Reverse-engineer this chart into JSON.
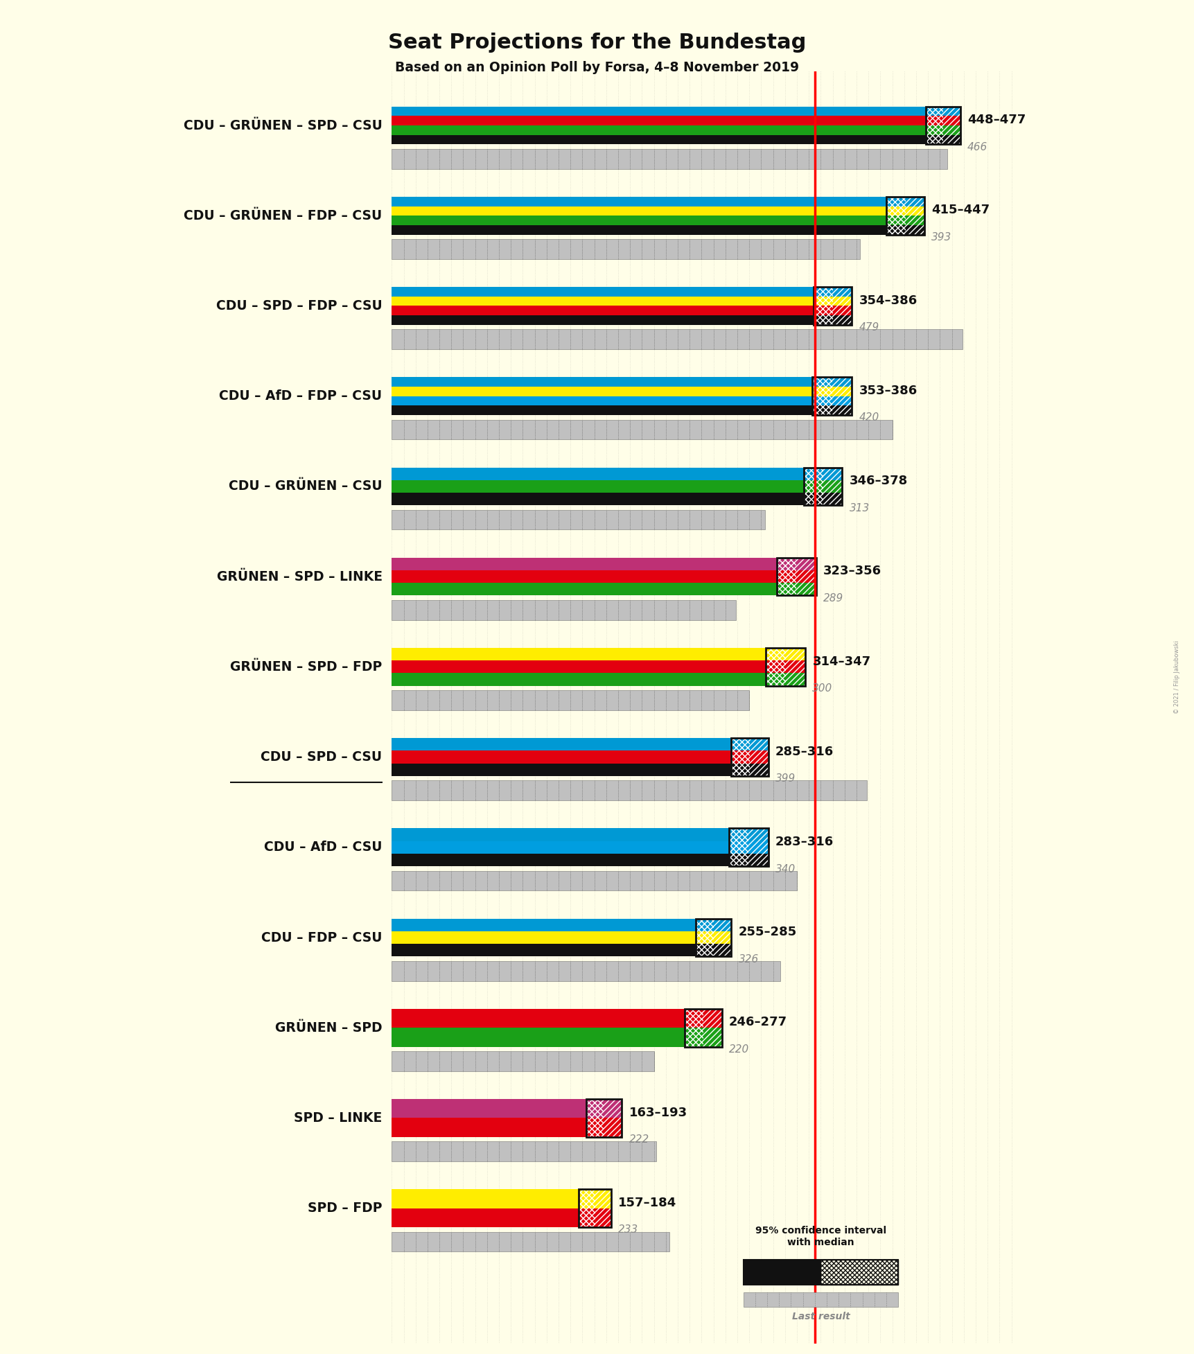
{
  "title": "Seat Projections for the Bundestag",
  "subtitle": "Based on an Opinion Poll by Forsa, 4–8 November 2019",
  "bg": "#FFFEE8",
  "majority": 355,
  "x_max": 520,
  "coalitions": [
    {
      "name": "CDU – GRÜNEN – SPD – CSU",
      "colors": [
        "#111111",
        "#1AA018",
        "#E3000F",
        "#0099D4"
      ],
      "low": 448,
      "high": 477,
      "last": 466,
      "underline": false
    },
    {
      "name": "CDU – GRÜNEN – FDP – CSU",
      "colors": [
        "#111111",
        "#1AA018",
        "#FFED00",
        "#0099D4"
      ],
      "low": 415,
      "high": 447,
      "last": 393,
      "underline": false
    },
    {
      "name": "CDU – SPD – FDP – CSU",
      "colors": [
        "#111111",
        "#E3000F",
        "#FFED00",
        "#0099D4"
      ],
      "low": 354,
      "high": 386,
      "last": 479,
      "underline": false
    },
    {
      "name": "CDU – AfD – FDP – CSU",
      "colors": [
        "#111111",
        "#009EE0",
        "#FFED00",
        "#0099D4"
      ],
      "low": 353,
      "high": 386,
      "last": 420,
      "underline": false
    },
    {
      "name": "CDU – GRÜNEN – CSU",
      "colors": [
        "#111111",
        "#1AA018",
        "#0099D4"
      ],
      "low": 346,
      "high": 378,
      "last": 313,
      "underline": false
    },
    {
      "name": "GRÜNEN – SPD – LINKE",
      "colors": [
        "#1AA018",
        "#E3000F",
        "#BE3075"
      ],
      "low": 323,
      "high": 356,
      "last": 289,
      "underline": false
    },
    {
      "name": "GRÜNEN – SPD – FDP",
      "colors": [
        "#1AA018",
        "#E3000F",
        "#FFED00"
      ],
      "low": 314,
      "high": 347,
      "last": 300,
      "underline": false
    },
    {
      "name": "CDU – SPD – CSU",
      "colors": [
        "#111111",
        "#E3000F",
        "#0099D4"
      ],
      "low": 285,
      "high": 316,
      "last": 399,
      "underline": true
    },
    {
      "name": "CDU – AfD – CSU",
      "colors": [
        "#111111",
        "#009EE0",
        "#0099D4"
      ],
      "low": 283,
      "high": 316,
      "last": 340,
      "underline": false
    },
    {
      "name": "CDU – FDP – CSU",
      "colors": [
        "#111111",
        "#FFED00",
        "#0099D4"
      ],
      "low": 255,
      "high": 285,
      "last": 326,
      "underline": false
    },
    {
      "name": "GRÜNEN – SPD",
      "colors": [
        "#1AA018",
        "#E3000F"
      ],
      "low": 246,
      "high": 277,
      "last": 220,
      "underline": false
    },
    {
      "name": "SPD – LINKE",
      "colors": [
        "#E3000F",
        "#BE3075"
      ],
      "low": 163,
      "high": 193,
      "last": 222,
      "underline": false
    },
    {
      "name": "SPD – FDP",
      "colors": [
        "#E3000F",
        "#FFED00"
      ],
      "low": 157,
      "high": 184,
      "last": 233,
      "underline": false
    }
  ]
}
